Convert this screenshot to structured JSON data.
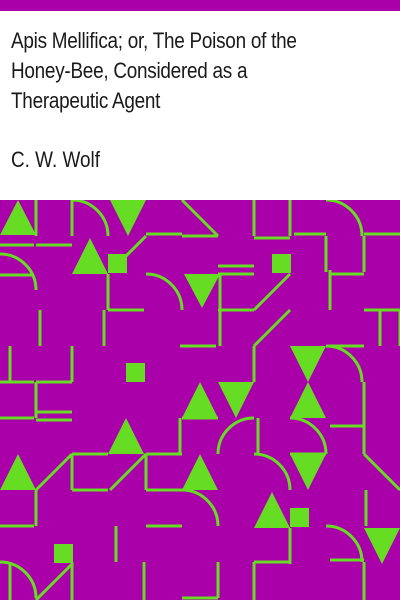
{
  "book": {
    "title_lines": [
      "Apis Mellifica; or, The Poison of the",
      "Honey-Bee, Considered as a",
      "Therapeutic Agent"
    ],
    "author": "C. W. Wolf"
  },
  "colors": {
    "background": "#ffffff",
    "accent": "#aa00aa",
    "pattern_background": "#aa00aa",
    "pattern_stroke": "#66dd22",
    "text": "#1a1a1a"
  }
}
